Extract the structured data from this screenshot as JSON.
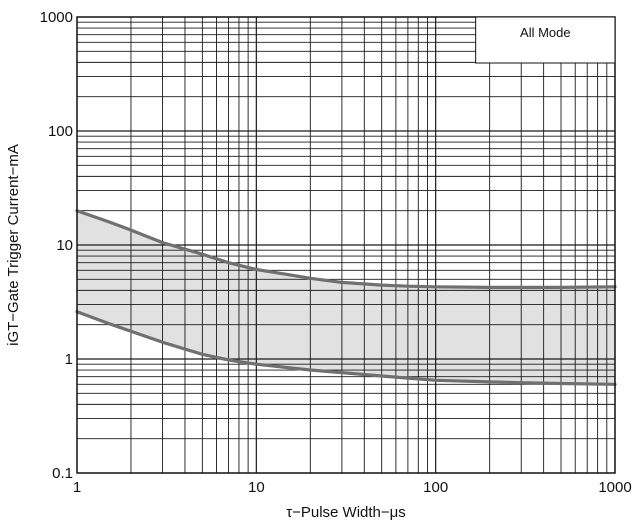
{
  "chart_data": {
    "type": "line",
    "x_scale": "log",
    "y_scale": "log",
    "xlim": [
      1,
      1000
    ],
    "ylim": [
      0.1,
      1000
    ],
    "xlabel": "τ−Pulse Width−μs",
    "ylabel": "iGT−Gate Trigger Current−mA",
    "x_ticks": [
      "1",
      "10",
      "100",
      "1000"
    ],
    "y_ticks": [
      "0.1",
      "1",
      "10",
      "100",
      "1000"
    ],
    "annotation": "All Mode",
    "grid": true,
    "shaded_band_between_series": true,
    "series": [
      {
        "x": [
          1,
          1.5,
          2,
          3,
          5,
          7,
          10,
          15,
          20,
          30,
          50,
          70,
          100,
          200,
          300,
          500,
          1000
        ],
        "values": [
          20,
          16,
          13.5,
          10.5,
          8.3,
          7.0,
          6.1,
          5.5,
          5.1,
          4.7,
          4.45,
          4.35,
          4.3,
          4.25,
          4.25,
          4.25,
          4.3
        ]
      },
      {
        "x": [
          1,
          1.5,
          2,
          3,
          5,
          7,
          10,
          15,
          20,
          30,
          50,
          70,
          100,
          200,
          300,
          500,
          1000
        ],
        "values": [
          2.6,
          2.05,
          1.75,
          1.4,
          1.1,
          0.98,
          0.9,
          0.84,
          0.8,
          0.76,
          0.71,
          0.68,
          0.65,
          0.63,
          0.62,
          0.61,
          0.6
        ]
      }
    ],
    "colors": {
      "curve": "#707070",
      "band": "#dcdcdc",
      "grid": "#1a1a1a"
    }
  }
}
